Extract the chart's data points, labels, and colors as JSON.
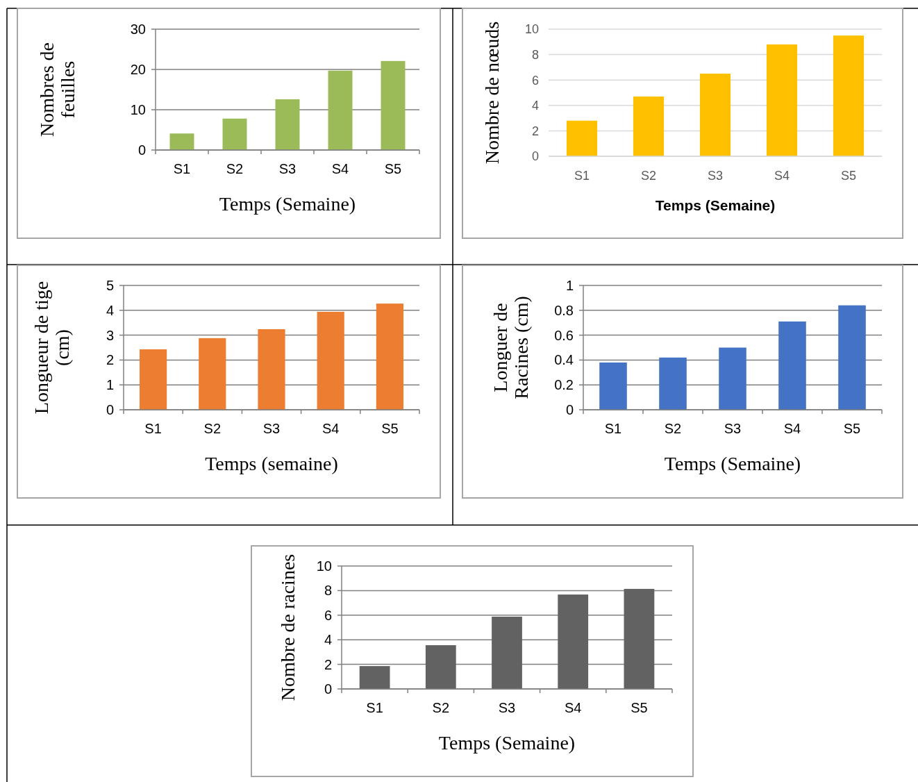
{
  "chart_data": [
    {
      "type": "bar",
      "categories": [
        "S1",
        "S2",
        "S3",
        "S4",
        "S5"
      ],
      "values": [
        4.1,
        7.8,
        12.6,
        19.7,
        22.1
      ],
      "color": "#9bbb59",
      "ylim": [
        0,
        30
      ],
      "yticks": [
        0,
        10,
        20,
        30
      ],
      "grid": "y",
      "xlabel": "Temps (Semaine)",
      "ylabel": "Nombres de feuilles"
    },
    {
      "type": "bar",
      "categories": [
        "S1",
        "S2",
        "S3",
        "S4",
        "S5"
      ],
      "values": [
        2.8,
        4.7,
        6.5,
        8.8,
        9.5
      ],
      "color": "#ffc000",
      "ylim": [
        0,
        10
      ],
      "yticks": [
        0,
        2,
        4,
        6,
        8,
        10
      ],
      "grid": "y",
      "xlabel": "Temps (Semaine)",
      "ylabel": "Nombre de nœuds"
    },
    {
      "type": "bar",
      "categories": [
        "S1",
        "S2",
        "S3",
        "S4",
        "S5"
      ],
      "values": [
        2.43,
        2.88,
        3.24,
        3.94,
        4.27
      ],
      "color": "#ed7d31",
      "ylim": [
        0,
        5
      ],
      "yticks": [
        0,
        1,
        2,
        3,
        4,
        5
      ],
      "grid": "y",
      "xlabel": "Temps (semaine)",
      "ylabel": "Longueur de tige (cm)"
    },
    {
      "type": "bar",
      "categories": [
        "S1",
        "S2",
        "S3",
        "S4",
        "S5"
      ],
      "values": [
        0.38,
        0.42,
        0.5,
        0.71,
        0.84
      ],
      "color": "#4472c4",
      "ylim": [
        0,
        1
      ],
      "yticks": [
        0,
        0.2,
        0.4,
        0.6,
        0.8,
        1
      ],
      "grid": "y",
      "xlabel": "Temps (Semaine)",
      "ylabel": "Longuer de Racines (cm)"
    },
    {
      "type": "bar",
      "categories": [
        "S1",
        "S2",
        "S3",
        "S4",
        "S5"
      ],
      "values": [
        1.86,
        3.56,
        5.88,
        7.68,
        8.14
      ],
      "color": "#626262",
      "ylim": [
        0,
        10
      ],
      "yticks": [
        0,
        2,
        4,
        6,
        8,
        10
      ],
      "grid": "y",
      "xlabel": "Temps (Semaine)",
      "ylabel": "Nombre de racines"
    }
  ]
}
